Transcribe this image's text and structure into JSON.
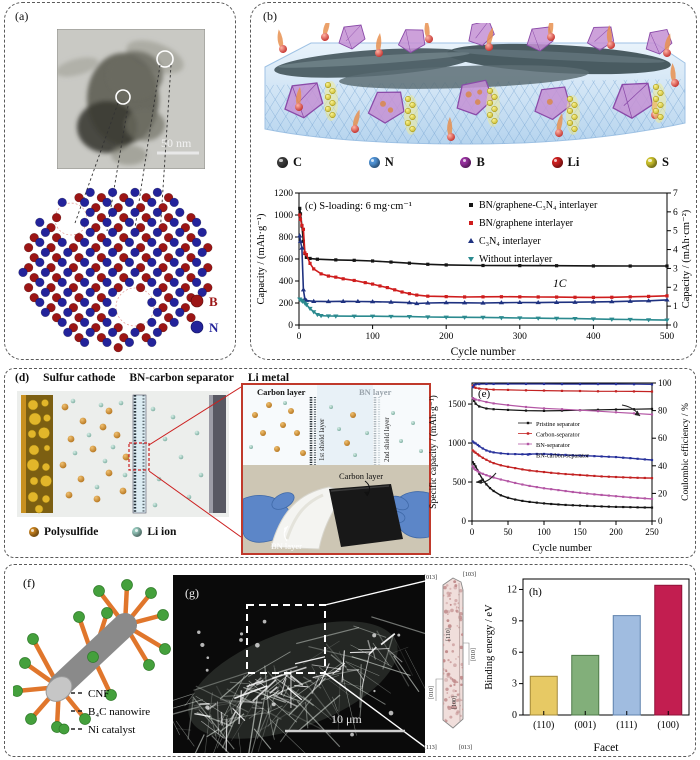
{
  "panel_a": {
    "label": "(a)",
    "scale_bar": "50 nm",
    "atom_b": {
      "label": "B",
      "color": "#9b1515"
    },
    "atom_n": {
      "label": "N",
      "color": "#23239a"
    }
  },
  "panel_b": {
    "label": "(b)",
    "legend": [
      {
        "label": "C",
        "color": "#3e3e3e"
      },
      {
        "label": "N",
        "color": "#4f93d6"
      },
      {
        "label": "B",
        "color": "#97309f"
      },
      {
        "label": "Li",
        "color": "#cd1f1f"
      },
      {
        "label": "S",
        "color": "#cdc32c"
      }
    ]
  },
  "panel_d": {
    "label": "(d)",
    "header_items": [
      "Sulfur cathode",
      "BN-carbon separator",
      "Li metal"
    ],
    "legend": [
      {
        "label": "Polysulfide",
        "color": "#c9831f"
      },
      {
        "label": "Li ion",
        "color": "#94c6ba"
      }
    ],
    "inset": {
      "carbon_layer": "Carbon layer",
      "bn_layer": "BN layer",
      "shield1": "1st shield layer",
      "shield2": "2nd shield layer",
      "photo_carbon": "Carbon layer",
      "photo_bn": "BN layer"
    }
  },
  "panel_f": {
    "label": "(f)",
    "legend": [
      "CNF",
      "B₄C nanowire",
      "Ni catalyst"
    ]
  },
  "panel_g": {
    "label": "(g)",
    "scale_bar": "10 μm",
    "crystal_labels": {
      "top_left": "[013]",
      "top_right": "[103]",
      "body_upper": "[110]",
      "right_mid": "[010]",
      "left_lower": "[010]",
      "body_lower": "[100]",
      "bottom_left": "[113]",
      "bottom_right": "[013]"
    }
  },
  "chart_data": [
    {
      "id": "c",
      "type": "line",
      "panel_label": "(c)",
      "title": "S-loading: 6 mg·cm⁻¹",
      "annotation": "1C",
      "xlabel": "Cycle number",
      "ylabel": "Capacity / (mAh·g⁻¹)",
      "y2label": "Capacity / (mAh·cm⁻²)",
      "xlim": [
        0,
        500
      ],
      "xticks": [
        0,
        100,
        200,
        300,
        400,
        500
      ],
      "ylim": [
        0,
        1200
      ],
      "yticks": [
        0,
        200,
        400,
        600,
        800,
        1000,
        1200
      ],
      "y2lim": [
        0,
        7
      ],
      "y2ticks": [
        0,
        1,
        2,
        3,
        4,
        5,
        6,
        7
      ],
      "series": [
        {
          "name": "BN/graphene-C₃N₄ interlayer",
          "color": "#151515",
          "marker": "s",
          "axis": "left",
          "x": [
            1,
            2,
            4,
            6,
            8,
            10,
            15,
            25,
            50,
            75,
            100,
            125,
            150,
            175,
            200,
            250,
            300,
            350,
            400,
            450,
            500
          ],
          "y": [
            1060,
            1010,
            900,
            760,
            650,
            615,
            605,
            598,
            592,
            588,
            582,
            572,
            562,
            552,
            546,
            541,
            540,
            539,
            537,
            536,
            536
          ]
        },
        {
          "name": "BN/graphene interlayer",
          "color": "#cf1d1d",
          "marker": "s",
          "axis": "left",
          "x": [
            1,
            2,
            4,
            6,
            8,
            10,
            15,
            20,
            30,
            40,
            50,
            60,
            75,
            90,
            100,
            110,
            120,
            130,
            140,
            150,
            160,
            175,
            200,
            225,
            250,
            275,
            300,
            325,
            350,
            375,
            400,
            425,
            450,
            475,
            500
          ],
          "y": [
            1000,
            960,
            905,
            870,
            655,
            640,
            560,
            510,
            465,
            445,
            435,
            420,
            405,
            385,
            372,
            355,
            340,
            320,
            300,
            285,
            272,
            262,
            258,
            255,
            256,
            257,
            256,
            255,
            254,
            252,
            251,
            252,
            256,
            260,
            265
          ]
        },
        {
          "name": "C₃N₄ interlayer",
          "color": "#1f3280",
          "marker": "t",
          "axis": "left",
          "x": [
            1,
            2,
            4,
            6,
            8,
            10,
            20,
            40,
            60,
            80,
            100,
            125,
            150,
            160,
            175,
            200,
            225,
            250,
            275,
            300,
            325,
            350,
            375,
            400,
            425,
            450,
            475,
            500
          ],
          "y": [
            810,
            760,
            700,
            320,
            235,
            222,
            215,
            213,
            215,
            214,
            212,
            208,
            203,
            195,
            200,
            203,
            202,
            200,
            203,
            205,
            204,
            206,
            207,
            210,
            212,
            216,
            220,
            228
          ]
        },
        {
          "name": "Without interlayer",
          "color": "#2b8a8f",
          "marker": "v",
          "axis": "left",
          "x": [
            1,
            3,
            5,
            8,
            10,
            15,
            20,
            25,
            30,
            40,
            50,
            75,
            100,
            125,
            150,
            175,
            200,
            225,
            250,
            275,
            300,
            325,
            350,
            375,
            400,
            425,
            450,
            475,
            500
          ],
          "y": [
            235,
            225,
            215,
            200,
            185,
            150,
            120,
            95,
            85,
            82,
            81,
            80,
            80,
            78,
            76,
            73,
            71,
            70,
            69,
            66,
            64,
            62,
            60,
            58,
            55,
            52,
            50,
            47,
            45
          ]
        }
      ]
    },
    {
      "id": "e",
      "type": "line",
      "panel_label": "(e)",
      "xlabel": "Cycle number",
      "ylabel": "Specific capacity / (mAh·g⁻¹)",
      "y2label": "Coulombic efficiency / %",
      "xlim": [
        0,
        250
      ],
      "xticks": [
        0,
        50,
        100,
        150,
        200,
        250
      ],
      "ylim": [
        0,
        1770
      ],
      "yticks": [
        0,
        500,
        1000,
        1500
      ],
      "y2lim": [
        0,
        100
      ],
      "y2ticks": [
        0,
        20,
        40,
        60,
        80,
        100
      ],
      "series": [
        {
          "name": "Pristine separator",
          "color": "#151515",
          "marker": "s",
          "axis": "left",
          "x": [
            1,
            3,
            5,
            8,
            10,
            15,
            20,
            25,
            30,
            40,
            50,
            60,
            70,
            80,
            90,
            100,
            110,
            120,
            130,
            140,
            150,
            160,
            170,
            180,
            190,
            200,
            210,
            220,
            230,
            240,
            250
          ],
          "y": [
            755,
            730,
            700,
            645,
            608,
            530,
            470,
            422,
            385,
            330,
            298,
            275,
            258,
            245,
            235,
            226,
            218,
            212,
            206,
            202,
            198,
            194,
            190,
            187,
            184,
            181,
            179,
            177,
            175,
            173,
            172
          ]
        },
        {
          "name": "Carbon-separator",
          "color": "#c32222",
          "marker": "s",
          "axis": "left",
          "x": [
            1,
            3,
            5,
            8,
            10,
            15,
            20,
            25,
            30,
            40,
            50,
            60,
            70,
            80,
            90,
            100,
            110,
            120,
            130,
            140,
            150,
            160,
            170,
            180,
            190,
            200,
            210,
            220,
            230,
            240,
            250
          ],
          "y": [
            905,
            890,
            875,
            855,
            840,
            810,
            785,
            762,
            742,
            715,
            695,
            678,
            662,
            648,
            638,
            628,
            618,
            610,
            602,
            596,
            590,
            584,
            578,
            572,
            568,
            564,
            560,
            557,
            554,
            552,
            550
          ]
        },
        {
          "name": "BN-separator",
          "color": "#b457a5",
          "marker": "s",
          "axis": "left",
          "x": [
            1,
            3,
            5,
            8,
            10,
            15,
            20,
            25,
            30,
            40,
            50,
            60,
            70,
            80,
            90,
            100,
            110,
            120,
            130,
            140,
            150,
            160,
            170,
            180,
            190,
            200,
            210,
            220,
            230,
            240,
            250
          ],
          "y": [
            700,
            672,
            655,
            638,
            625,
            605,
            588,
            572,
            558,
            532,
            510,
            488,
            468,
            450,
            435,
            420,
            408,
            396,
            384,
            372,
            362,
            352,
            342,
            334,
            326,
            318,
            310,
            303,
            296,
            290,
            284
          ]
        },
        {
          "name": "BN-carbon-separator",
          "color": "#27319b",
          "marker": "s",
          "axis": "left",
          "x": [
            1,
            3,
            5,
            8,
            10,
            15,
            20,
            25,
            30,
            40,
            50,
            60,
            70,
            80,
            90,
            100,
            110,
            120,
            130,
            140,
            150,
            160,
            170,
            180,
            190,
            200,
            210,
            220,
            230,
            240,
            250
          ],
          "y": [
            1020,
            1005,
            995,
            975,
            960,
            930,
            905,
            890,
            880,
            868,
            860,
            858,
            856,
            858,
            860,
            860,
            856,
            850,
            848,
            843,
            840,
            836,
            832,
            828,
            824,
            820,
            812,
            806,
            798,
            790,
            782
          ]
        }
      ],
      "efficiency_series": [
        {
          "name": "Pristine separator",
          "color": "#151515",
          "x": [
            1,
            3,
            5,
            10,
            20,
            30,
            50,
            75,
            100,
            125,
            150,
            175,
            200,
            225,
            250
          ],
          "y": [
            89,
            87,
            85,
            83,
            81.5,
            81,
            80.5,
            80,
            79.8,
            80,
            80.3,
            80.6,
            80.8,
            81,
            81.2
          ]
        },
        {
          "name": "Carbon-separator",
          "color": "#c32222",
          "x": [
            1,
            3,
            5,
            10,
            20,
            30,
            50,
            75,
            100,
            125,
            150,
            175,
            200,
            225,
            250
          ],
          "y": [
            98,
            97,
            96.5,
            96,
            95.5,
            95.2,
            95,
            94.7,
            94.5,
            94.3,
            94.2,
            94,
            94,
            93.9,
            93.8
          ]
        },
        {
          "name": "BN-separator",
          "color": "#b457a5",
          "x": [
            1,
            3,
            5,
            10,
            20,
            30,
            50,
            75,
            100,
            125,
            150,
            175,
            200,
            225,
            250
          ],
          "y": [
            89,
            88.5,
            88,
            87.5,
            86.2,
            85.2,
            84,
            82.6,
            81.6,
            81,
            80.3,
            79.6,
            78.8,
            78,
            77.2
          ]
        },
        {
          "name": "BN-carbon-separator",
          "color": "#27319b",
          "x": [
            1,
            3,
            5,
            10,
            20,
            30,
            50,
            75,
            100,
            125,
            150,
            175,
            200,
            225,
            250
          ],
          "y": [
            97,
            98.5,
            99,
            99.2,
            99.3,
            99.3,
            99.3,
            99.3,
            99.3,
            99.2,
            99.2,
            99.2,
            99.2,
            99.1,
            99
          ]
        }
      ]
    },
    {
      "id": "h",
      "type": "bar",
      "panel_label": "(h)",
      "xlabel": "Facet",
      "ylabel": "Binding energy / eV",
      "categories": [
        "(110)",
        "(001)",
        "(111)",
        "(100)"
      ],
      "values": [
        3.7,
        5.7,
        9.5,
        12.4
      ],
      "bar_colors": [
        "#e7c964",
        "#82af7a",
        "#a0bce0",
        "#c21e50"
      ],
      "bar_borders": [
        "#a3893a",
        "#4e7a48",
        "#5f82ad",
        "#8f1238"
      ],
      "ylim": [
        0,
        13
      ],
      "yticks": [
        0,
        3,
        6,
        9,
        12
      ]
    }
  ]
}
